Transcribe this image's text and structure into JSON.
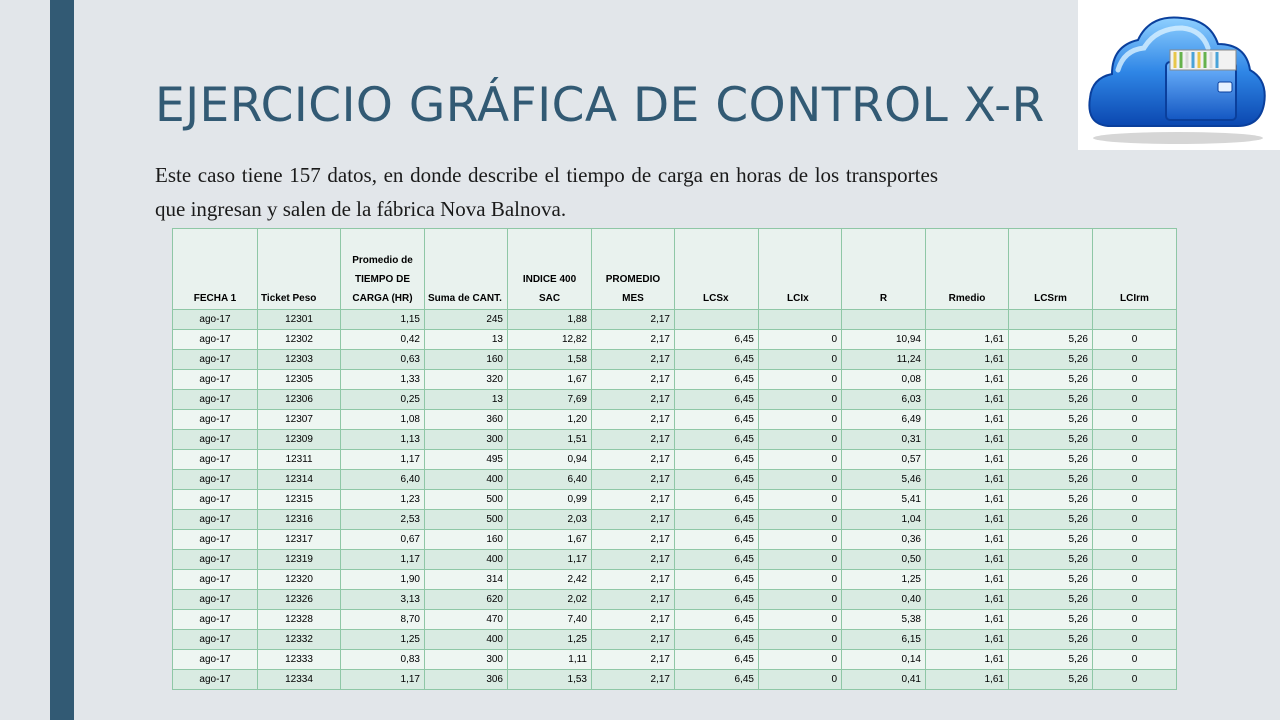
{
  "slide": {
    "title": "EJERCICIO GRÁFICA DE CONTROL X-R",
    "description": "Este caso tiene 157 datos, en donde describe el tiempo de carga en horas de los transportes que ingresan y salen de la fábrica Nova Balnova.",
    "logo_icon": "cloud-file-cabinet-icon",
    "accent_color": "#325a74"
  },
  "table": {
    "headers": [
      "FECHA 1",
      "Ticket Peso",
      "Promedio de TIEMPO DE CARGA (HR)",
      "Suma de CANT.",
      "INDICE 400 SAC",
      "PROMEDIO MES",
      "LCSx",
      "LCIx",
      "R",
      "Rmedio",
      "LCSrm",
      "LCIrm"
    ],
    "rows": [
      [
        "ago-17",
        "12301",
        "1,15",
        "245",
        "1,88",
        "2,17",
        "",
        "",
        "",
        "",
        "",
        ""
      ],
      [
        "ago-17",
        "12302",
        "0,42",
        "13",
        "12,82",
        "2,17",
        "6,45",
        "0",
        "10,94",
        "1,61",
        "5,26",
        "0"
      ],
      [
        "ago-17",
        "12303",
        "0,63",
        "160",
        "1,58",
        "2,17",
        "6,45",
        "0",
        "11,24",
        "1,61",
        "5,26",
        "0"
      ],
      [
        "ago-17",
        "12305",
        "1,33",
        "320",
        "1,67",
        "2,17",
        "6,45",
        "0",
        "0,08",
        "1,61",
        "5,26",
        "0"
      ],
      [
        "ago-17",
        "12306",
        "0,25",
        "13",
        "7,69",
        "2,17",
        "6,45",
        "0",
        "6,03",
        "1,61",
        "5,26",
        "0"
      ],
      [
        "ago-17",
        "12307",
        "1,08",
        "360",
        "1,20",
        "2,17",
        "6,45",
        "0",
        "6,49",
        "1,61",
        "5,26",
        "0"
      ],
      [
        "ago-17",
        "12309",
        "1,13",
        "300",
        "1,51",
        "2,17",
        "6,45",
        "0",
        "0,31",
        "1,61",
        "5,26",
        "0"
      ],
      [
        "ago-17",
        "12311",
        "1,17",
        "495",
        "0,94",
        "2,17",
        "6,45",
        "0",
        "0,57",
        "1,61",
        "5,26",
        "0"
      ],
      [
        "ago-17",
        "12314",
        "6,40",
        "400",
        "6,40",
        "2,17",
        "6,45",
        "0",
        "5,46",
        "1,61",
        "5,26",
        "0"
      ],
      [
        "ago-17",
        "12315",
        "1,23",
        "500",
        "0,99",
        "2,17",
        "6,45",
        "0",
        "5,41",
        "1,61",
        "5,26",
        "0"
      ],
      [
        "ago-17",
        "12316",
        "2,53",
        "500",
        "2,03",
        "2,17",
        "6,45",
        "0",
        "1,04",
        "1,61",
        "5,26",
        "0"
      ],
      [
        "ago-17",
        "12317",
        "0,67",
        "160",
        "1,67",
        "2,17",
        "6,45",
        "0",
        "0,36",
        "1,61",
        "5,26",
        "0"
      ],
      [
        "ago-17",
        "12319",
        "1,17",
        "400",
        "1,17",
        "2,17",
        "6,45",
        "0",
        "0,50",
        "1,61",
        "5,26",
        "0"
      ],
      [
        "ago-17",
        "12320",
        "1,90",
        "314",
        "2,42",
        "2,17",
        "6,45",
        "0",
        "1,25",
        "1,61",
        "5,26",
        "0"
      ],
      [
        "ago-17",
        "12326",
        "3,13",
        "620",
        "2,02",
        "2,17",
        "6,45",
        "0",
        "0,40",
        "1,61",
        "5,26",
        "0"
      ],
      [
        "ago-17",
        "12328",
        "8,70",
        "470",
        "7,40",
        "2,17",
        "6,45",
        "0",
        "5,38",
        "1,61",
        "5,26",
        "0"
      ],
      [
        "ago-17",
        "12332",
        "1,25",
        "400",
        "1,25",
        "2,17",
        "6,45",
        "0",
        "6,15",
        "1,61",
        "5,26",
        "0"
      ],
      [
        "ago-17",
        "12333",
        "0,83",
        "300",
        "1,11",
        "2,17",
        "6,45",
        "0",
        "0,14",
        "1,61",
        "5,26",
        "0"
      ],
      [
        "ago-17",
        "12334",
        "1,17",
        "306",
        "1,53",
        "2,17",
        "6,45",
        "0",
        "0,41",
        "1,61",
        "5,26",
        "0"
      ]
    ]
  }
}
